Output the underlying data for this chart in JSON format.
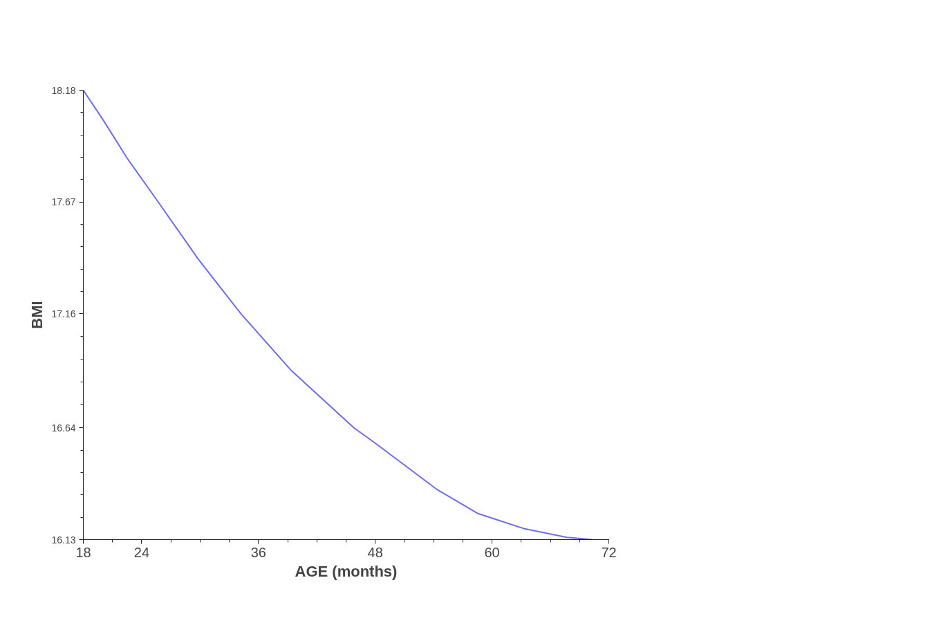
{
  "chart_data": {
    "type": "line",
    "xlabel": "AGE (months)",
    "ylabel": "BMI",
    "x": [
      18,
      20.1,
      22.5,
      25.7,
      29.8,
      34.2,
      39.4,
      45.8,
      48,
      54.3,
      58.5,
      63.3,
      67.7,
      70.3
    ],
    "series": [
      {
        "color": "#6b6bf5",
        "values": [
          18.18,
          18.04,
          17.87,
          17.67,
          17.41,
          17.16,
          16.9,
          16.64,
          16.57,
          16.36,
          16.25,
          16.18,
          16.14,
          16.13
        ]
      }
    ],
    "xlim": [
      18,
      72
    ],
    "xticks": [
      18,
      24,
      36,
      48,
      60,
      72
    ],
    "ylim": [
      16.13,
      18.18
    ],
    "yticks": [
      16.13,
      16.64,
      17.16,
      17.67,
      18.18
    ],
    "grid": false,
    "marker": "none",
    "line_style": "solid"
  }
}
